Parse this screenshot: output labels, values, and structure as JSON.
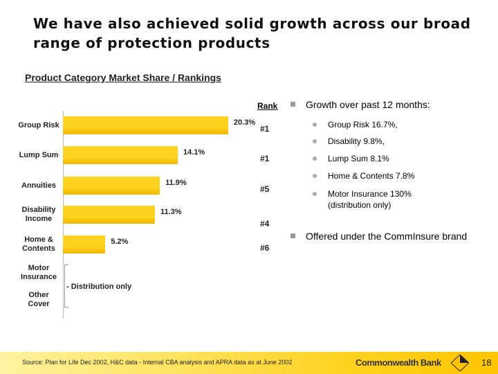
{
  "slide": {
    "title": "We have also achieved solid growth across our broad range of protection products"
  },
  "chart_data": {
    "type": "bar",
    "title": "Product Category Market Share / Rankings",
    "categories": [
      "Group Risk",
      "Lump Sum",
      "Annuities",
      "Disability\nIncome",
      "Home &\nContents",
      "Motor\nInsurance",
      "Other\nCover"
    ],
    "values": [
      20.3,
      14.1,
      11.9,
      11.3,
      5.2,
      null,
      null
    ],
    "value_labels": [
      "20.3%",
      "14.1%",
      "11.9%",
      "11.3%",
      "5.2%",
      null,
      null
    ],
    "color": "#ffd21f",
    "rank_header": "Rank",
    "ranks": [
      "#1",
      "#1",
      "#5",
      "#4",
      "#6",
      null,
      null
    ],
    "bracket_note": "- Distribution only"
  },
  "bullets": [
    {
      "text": "Growth over past 12 months:",
      "sub": [
        "Group Risk 16.7%,",
        "Disability 9.8%,",
        "Lump Sum 8.1%",
        "Home & Contents 7.8%",
        "Motor Insurance 130%\n(distribution only)"
      ]
    },
    {
      "text": "Offered under the CommInsure brand"
    }
  ],
  "footer": {
    "source": "Source: Plan for Life Dec 2002, H&C data - Internal CBA analysis and APRA data as at June 2002",
    "brand": "Commonwealth Bank",
    "page": "18"
  }
}
